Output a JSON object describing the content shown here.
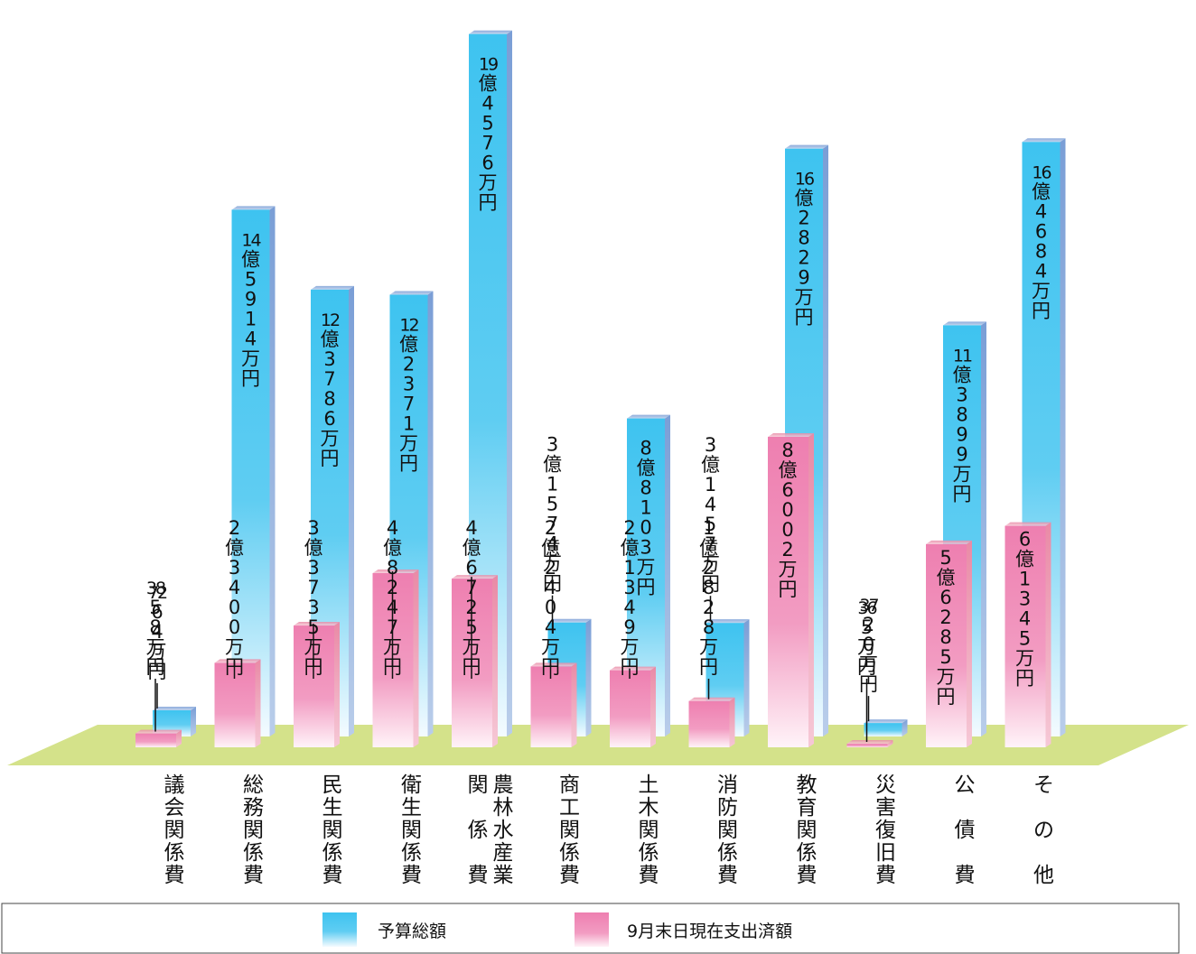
{
  "chart_data": {
    "type": "bar",
    "title": "",
    "xlabel": "",
    "ylabel": "",
    "unit": "万円",
    "ylim": [
      0,
      200000
    ],
    "grid": false,
    "legend_position": "bottom",
    "categories": [
      [
        "議会関係費"
      ],
      [
        "総務関係費"
      ],
      [
        "民生関係費"
      ],
      [
        "衛生関係費"
      ],
      [
        "農林水産業",
        "関係費"
      ],
      [
        "商工関係費"
      ],
      [
        "土木関係費"
      ],
      [
        "消防関係費"
      ],
      [
        "教育関係費"
      ],
      [
        "災害復旧費"
      ],
      [
        "公",
        "債",
        "費"
      ],
      [
        "そ",
        "の",
        "他"
      ]
    ],
    "series": [
      {
        "name": "予算総額",
        "color": "#45c6f0",
        "values": [
          7264,
          145914,
          123786,
          122371,
          194576,
          31574,
          88103,
          31457,
          162829,
          3720,
          113899,
          164684
        ],
        "labels": [
          "7264万円",
          "14億5914万円",
          "12億3786万円",
          "12億2371万円",
          "19億4576万円",
          "3億1574万円",
          "8億8103万円",
          "3億1457万円",
          "16億2829万円",
          "3720万円",
          "11億3899万円",
          "16億4684万円"
        ]
      },
      {
        "name": "9月末日現在支出済額",
        "color": "#ef84b2",
        "values": [
          3858,
          23400,
          33735,
          48247,
          46725,
          22404,
          21349,
          12828,
          86002,
          365,
          56285,
          61345
        ],
        "labels": [
          "3858万円",
          "2億3400万円",
          "3億3735万円",
          "4億8247万円",
          "4億6725万円",
          "2億2404万円",
          "2億1349万円",
          "1億2828万円",
          "8億6002万円",
          "365万円",
          "5億6285万円",
          "6億1345万円"
        ]
      }
    ]
  }
}
